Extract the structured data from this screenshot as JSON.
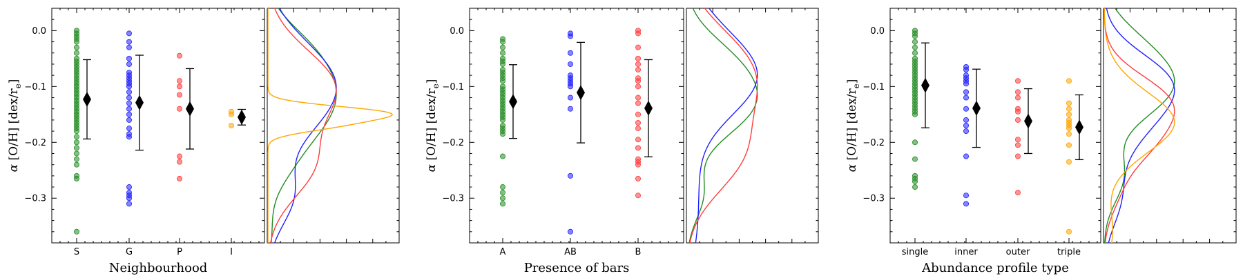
{
  "chart_data": [
    {
      "type": "scatter",
      "xlabel": "Neighbourhood",
      "ylabel": "α [O/H] [dex/r_e]",
      "ylabel_parts": {
        "alpha": "α",
        "main": "[O/H] [dex/r",
        "sub": "e",
        "close": "]"
      },
      "ylim": [
        -0.38,
        0.04
      ],
      "yticks": [
        0.0,
        -0.1,
        -0.2,
        -0.3
      ],
      "ytick_labels": [
        "0.0",
        "−0.1",
        "−0.2",
        "−0.3"
      ],
      "categories": [
        "S",
        "G",
        "P",
        "I"
      ],
      "colors": [
        "#228B22",
        "#1f1fff",
        "#ff3b3b",
        "#ffa500"
      ],
      "points": [
        [
          0.0,
          -0.005,
          -0.01,
          -0.015,
          -0.02,
          -0.03,
          -0.04,
          -0.05,
          -0.055,
          -0.06,
          -0.065,
          -0.07,
          -0.075,
          -0.08,
          -0.085,
          -0.09,
          -0.095,
          -0.1,
          -0.105,
          -0.11,
          -0.115,
          -0.12,
          -0.125,
          -0.13,
          -0.135,
          -0.14,
          -0.145,
          -0.15,
          -0.155,
          -0.16,
          -0.165,
          -0.17,
          -0.175,
          -0.18,
          -0.19,
          -0.2,
          -0.21,
          -0.22,
          -0.23,
          -0.24,
          -0.26,
          -0.265,
          -0.36
        ],
        [
          -0.005,
          -0.02,
          -0.03,
          -0.05,
          -0.06,
          -0.075,
          -0.08,
          -0.085,
          -0.09,
          -0.095,
          -0.1,
          -0.11,
          -0.12,
          -0.13,
          -0.14,
          -0.15,
          -0.16,
          -0.175,
          -0.185,
          -0.19,
          -0.28,
          -0.29,
          -0.295,
          -0.3,
          -0.31
        ],
        [
          -0.045,
          -0.09,
          -0.1,
          -0.115,
          -0.14,
          -0.225,
          -0.235,
          -0.265
        ],
        [
          -0.145,
          -0.15,
          -0.17
        ]
      ],
      "means": [
        -0.123,
        -0.129,
        -0.14,
        -0.155
      ],
      "errors": [
        0.071,
        0.085,
        0.072,
        0.014
      ]
    },
    {
      "type": "scatter",
      "xlabel": "Presence of bars",
      "ylabel": "α [O/H] [dex/r_e]",
      "ylabel_parts": {
        "alpha": "α",
        "main": "[O/H] [dex/r",
        "sub": "e",
        "close": "]"
      },
      "ylim": [
        -0.38,
        0.04
      ],
      "yticks": [
        0.0,
        -0.1,
        -0.2,
        -0.3
      ],
      "ytick_labels": [
        "0.0",
        "−0.1",
        "−0.2",
        "−0.3"
      ],
      "categories": [
        "A",
        "AB",
        "B"
      ],
      "colors": [
        "#228B22",
        "#1f1fff",
        "#ff3b3b"
      ],
      "points": [
        [
          -0.015,
          -0.02,
          -0.03,
          -0.04,
          -0.05,
          -0.055,
          -0.06,
          -0.07,
          -0.075,
          -0.08,
          -0.085,
          -0.09,
          -0.1,
          -0.105,
          -0.11,
          -0.115,
          -0.12,
          -0.125,
          -0.13,
          -0.135,
          -0.14,
          -0.145,
          -0.15,
          -0.155,
          -0.16,
          -0.17,
          -0.175,
          -0.18,
          -0.185,
          -0.225,
          -0.28,
          -0.29,
          -0.3,
          -0.31
        ],
        [
          -0.005,
          -0.01,
          -0.04,
          -0.06,
          -0.08,
          -0.085,
          -0.09,
          -0.095,
          -0.1,
          -0.12,
          -0.14,
          -0.26,
          -0.36
        ],
        [
          0.0,
          -0.005,
          -0.03,
          -0.05,
          -0.06,
          -0.07,
          -0.085,
          -0.09,
          -0.1,
          -0.12,
          -0.13,
          -0.15,
          -0.165,
          -0.175,
          -0.195,
          -0.21,
          -0.23,
          -0.235,
          -0.24,
          -0.265,
          -0.295
        ]
      ],
      "means": [
        -0.127,
        -0.111,
        -0.139
      ],
      "errors": [
        0.066,
        0.09,
        0.087
      ]
    },
    {
      "type": "scatter",
      "xlabel": "Abundance profile type",
      "ylabel": "α [O/H] [dex/r_e]",
      "ylabel_parts": {
        "alpha": "α",
        "main": "[O/H] [dex/r",
        "sub": "e",
        "close": "]"
      },
      "ylim": [
        -0.38,
        0.04
      ],
      "yticks": [
        0.0,
        -0.1,
        -0.2,
        -0.3
      ],
      "ytick_labels": [
        "0.0",
        "−0.1",
        "−0.2",
        "−0.3"
      ],
      "categories": [
        "single",
        "inner",
        "outer",
        "triple"
      ],
      "colors": [
        "#228B22",
        "#1f1fff",
        "#ff3b3b",
        "#ffa500"
      ],
      "points": [
        [
          0.0,
          -0.005,
          -0.01,
          -0.02,
          -0.03,
          -0.04,
          -0.05,
          -0.055,
          -0.06,
          -0.065,
          -0.07,
          -0.075,
          -0.08,
          -0.085,
          -0.09,
          -0.095,
          -0.1,
          -0.105,
          -0.11,
          -0.115,
          -0.12,
          -0.125,
          -0.13,
          -0.135,
          -0.14,
          -0.145,
          -0.15,
          -0.2,
          -0.23,
          -0.26,
          -0.265,
          -0.27,
          -0.28
        ],
        [
          -0.065,
          -0.07,
          -0.08,
          -0.085,
          -0.09,
          -0.095,
          -0.11,
          -0.12,
          -0.14,
          -0.16,
          -0.17,
          -0.18,
          -0.225,
          -0.295,
          -0.31
        ],
        [
          -0.09,
          -0.11,
          -0.12,
          -0.14,
          -0.145,
          -0.16,
          -0.195,
          -0.205,
          -0.225,
          -0.29
        ],
        [
          -0.09,
          -0.13,
          -0.14,
          -0.15,
          -0.16,
          -0.165,
          -0.17,
          -0.175,
          -0.185,
          -0.205,
          -0.235,
          -0.36
        ]
      ],
      "means": [
        -0.098,
        -0.139,
        -0.162,
        -0.173
      ],
      "errors": [
        0.076,
        0.07,
        0.058,
        0.058
      ]
    }
  ]
}
